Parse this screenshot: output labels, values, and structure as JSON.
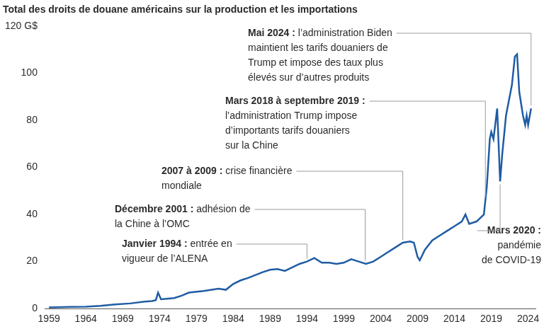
{
  "chart_data": {
    "type": "line",
    "title": "Total des droits de douane américains sur la production et les importations",
    "color": "#1f5ca3",
    "grid": false,
    "xlim": [
      1958.5,
      2025
    ],
    "xticks": [
      1959,
      1964,
      1969,
      1974,
      1979,
      1984,
      1989,
      1994,
      1999,
      2004,
      2009,
      2014,
      2019,
      2024
    ],
    "ylim": [
      0,
      120
    ],
    "yticks": [
      0,
      20,
      40,
      60,
      80,
      100,
      {
        "value": 120,
        "label": "120 G$"
      }
    ],
    "x": [
      1959,
      1960,
      1962,
      1964,
      1966,
      1968,
      1970,
      1972,
      1973,
      1973.5,
      1973.8,
      1974.2,
      1975,
      1976,
      1977,
      1978,
      1980,
      1982,
      1983,
      1984,
      1985,
      1986,
      1988,
      1989,
      1990,
      1991,
      1992,
      1993,
      1994,
      1995,
      1996,
      1997,
      1998,
      1999,
      2000,
      2001,
      2002,
      2003,
      2004,
      2005,
      2006,
      2007,
      2008,
      2008.5,
      2009,
      2009.3,
      2010,
      2011,
      2012,
      2013,
      2014,
      2015,
      2015.5,
      2016,
      2017,
      2018,
      2018.4,
      2018.8,
      2019.0,
      2019.3,
      2019.8,
      2020.2,
      2020.5,
      2021,
      2021.8,
      2022.2,
      2022.5,
      2022.8,
      2023.3,
      2023.6,
      2023.8,
      2024.0,
      2024.4
    ],
    "values": [
      0.5,
      0.6,
      0.7,
      0.8,
      1.2,
      1.8,
      2.2,
      3.0,
      3.2,
      3.6,
      6.8,
      4.0,
      4.2,
      4.5,
      5.5,
      6.8,
      7.5,
      8.5,
      8.0,
      10.5,
      12,
      13,
      15.5,
      16.5,
      16.8,
      16,
      17.5,
      19,
      20,
      21.5,
      19.5,
      19.5,
      19,
      19.5,
      21,
      20,
      19,
      20,
      22,
      24,
      26,
      28,
      28.5,
      28,
      22,
      20.5,
      25,
      29,
      31,
      33,
      35,
      37,
      40,
      36,
      37,
      40,
      52,
      72,
      75,
      72,
      85,
      54,
      66,
      82,
      95,
      107,
      108,
      92,
      82,
      78,
      82,
      78,
      85
    ],
    "annotations": [
      {
        "x": 1994,
        "bold": "Janvier 1994 :",
        "text": [
          "entrée en",
          "vigueur de l’ALENA"
        ]
      },
      {
        "x": 2001.9,
        "bold": "Décembre 2001 :",
        "text": [
          "adhésion de",
          "la Chine à l’OMC"
        ]
      },
      {
        "x": 2007,
        "bold": "2007 à 2009 :",
        "text": [
          "crise financière",
          "mondiale"
        ]
      },
      {
        "x": 2018.2,
        "bold": "Mars 2018 à septembre 2019 :",
        "text": [
          "l’administration Trump impose",
          "d’importants tarifs douaniers",
          "sur la Chine"
        ]
      },
      {
        "x": 2024.4,
        "bold": "Mai 2024 :",
        "text": [
          "l’administration Biden",
          "maintient les tarifs douaniers de",
          "Trump et impose des taux plus",
          "élevés sur d’autres produits"
        ]
      },
      {
        "x": 2020.2,
        "bold": "Mars 2020 :",
        "text": [
          "pandémie",
          "de COVID-19"
        ]
      }
    ]
  }
}
